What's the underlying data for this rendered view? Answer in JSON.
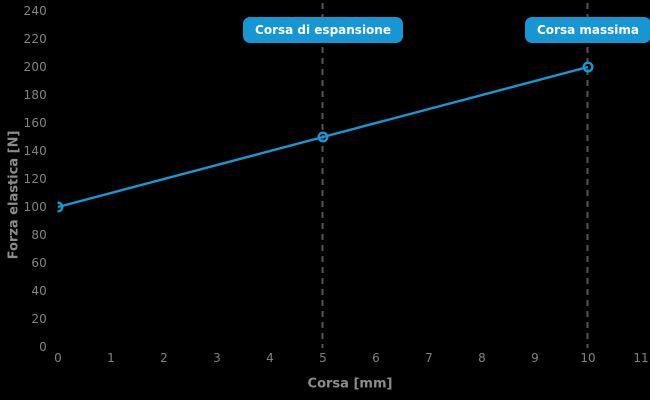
{
  "chart_data": {
    "type": "line",
    "title": "",
    "xlabel": "Corsa [mm]",
    "ylabel": "Forza elastica [N]",
    "series": [
      {
        "name": "Forza elastica",
        "points": [
          [
            0,
            100
          ],
          [
            5,
            150
          ],
          [
            10,
            200
          ]
        ],
        "marker": "open-circle"
      }
    ],
    "xticks": [
      0,
      1,
      2,
      3,
      4,
      5,
      6,
      7,
      8,
      9,
      10,
      11
    ],
    "yticks": [
      0,
      20,
      40,
      60,
      80,
      100,
      120,
      140,
      160,
      180,
      200,
      220,
      240
    ],
    "xlim": [
      0,
      11.2
    ],
    "ylim": [
      0,
      240
    ],
    "grid": false,
    "legend_position": "none",
    "annotations": [
      {
        "x": 5,
        "label": "Corsa di espansione",
        "style": "dashed-vline-with-badge"
      },
      {
        "x": 10,
        "label": "Corsa massima",
        "style": "dashed-vline-with-badge"
      }
    ],
    "colors": {
      "background": "#000000",
      "line": "#1698d4",
      "badge_bg": "#1697d3",
      "badge_text": "#ffffff",
      "tick_text": "#828282",
      "axis_title_text": "#8c8c8c",
      "dashed_line": "#555555"
    }
  }
}
